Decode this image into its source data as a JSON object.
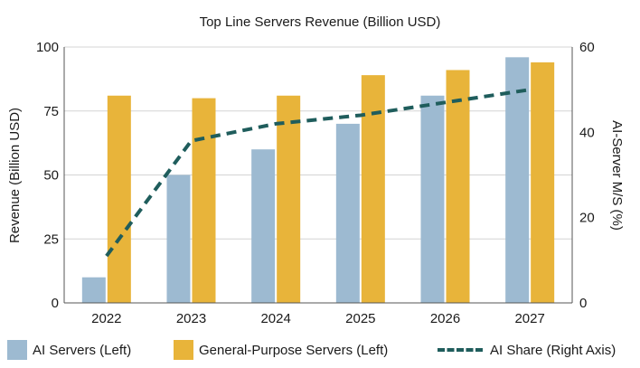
{
  "colors": {
    "ai_servers": "#9dbad1",
    "general_purpose": "#e8b43a",
    "ai_share": "#1f5d5c",
    "grid": "#d4d4d4",
    "axis": "#555555"
  },
  "legend": {
    "ai_servers": "AI Servers (Left)",
    "general_purpose": "General-Purpose Servers (Left)",
    "ai_share": "AI Share (Right Axis)"
  },
  "chart_data": {
    "type": "bar",
    "title": "Top Line Servers Revenue (Billion USD)",
    "xlabel": "",
    "ylabel": "Revenue (Billion USD)",
    "y2label": "AI-Server M/S (%)",
    "categories": [
      "2022",
      "2023",
      "2024",
      "2025",
      "2026",
      "2027"
    ],
    "ylim": [
      0,
      100
    ],
    "yticks": [
      0,
      25,
      50,
      75,
      100
    ],
    "y2lim": [
      0,
      60
    ],
    "y2ticks": [
      0,
      20,
      40,
      60
    ],
    "grid": true,
    "legend_position": "bottom",
    "series": [
      {
        "name": "AI Servers (Left)",
        "type": "bar",
        "axis": "left",
        "values": [
          10,
          50,
          60,
          70,
          81,
          96
        ]
      },
      {
        "name": "General-Purpose Servers (Left)",
        "type": "bar",
        "axis": "left",
        "values": [
          81,
          80,
          81,
          89,
          91,
          94
        ]
      },
      {
        "name": "AI Share (Right Axis)",
        "type": "line",
        "axis": "right",
        "style": "dashed",
        "values": [
          11,
          38,
          42,
          44,
          47,
          50
        ]
      }
    ]
  }
}
